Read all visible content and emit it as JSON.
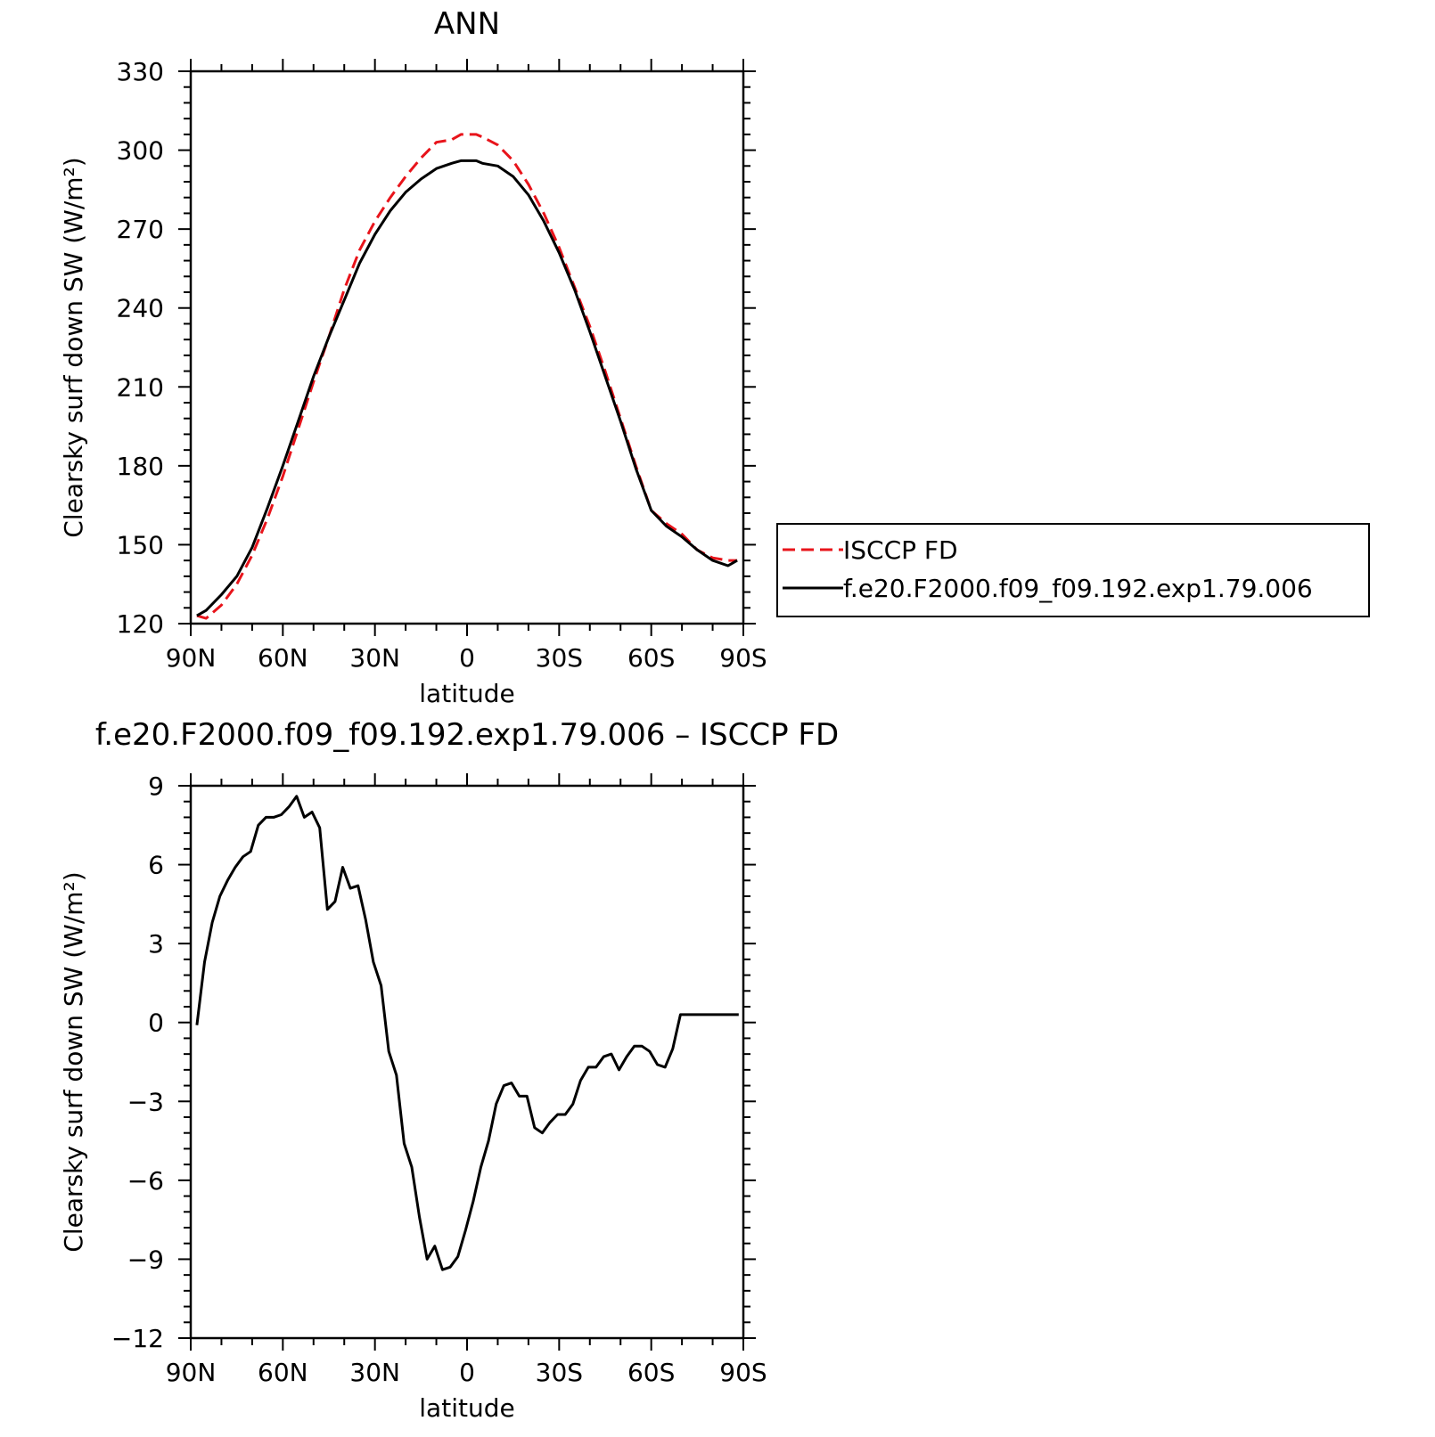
{
  "chart_data": [
    {
      "type": "line",
      "title": "ANN",
      "xlabel": "latitude",
      "ylabel": "Clearsky surf down SW (W/m²)",
      "xlim": [
        90,
        -90
      ],
      "ylim": [
        120,
        330
      ],
      "x_ticks": [
        {
          "value": 90,
          "label": "90N"
        },
        {
          "value": 60,
          "label": "60N"
        },
        {
          "value": 30,
          "label": "30N"
        },
        {
          "value": 0,
          "label": "0"
        },
        {
          "value": -30,
          "label": "30S"
        },
        {
          "value": -60,
          "label": "60S"
        },
        {
          "value": -90,
          "label": "90S"
        }
      ],
      "y_ticks": [
        {
          "value": 120,
          "label": "120"
        },
        {
          "value": 150,
          "label": "150"
        },
        {
          "value": 180,
          "label": "180"
        },
        {
          "value": 210,
          "label": "210"
        },
        {
          "value": 240,
          "label": "240"
        },
        {
          "value": 270,
          "label": "270"
        },
        {
          "value": 300,
          "label": "300"
        },
        {
          "value": 330,
          "label": "330"
        }
      ],
      "grid": false,
      "legend_position": "right",
      "series": [
        {
          "name": "ISCCP FD",
          "color": "#e8141b",
          "dash": "dashed",
          "x": [
            88,
            85,
            80,
            75,
            70,
            65,
            60,
            55,
            50,
            45,
            40,
            35,
            30,
            25,
            20,
            15,
            10,
            5,
            2,
            0,
            -3,
            -5,
            -10,
            -15,
            -20,
            -25,
            -30,
            -35,
            -40,
            -45,
            -50,
            -55,
            -60,
            -65,
            -70,
            -75,
            -80,
            -85,
            -88
          ],
          "y": [
            123,
            122,
            127,
            135,
            146,
            160,
            176,
            194,
            212,
            229,
            247,
            262,
            273,
            282,
            290,
            297,
            303,
            304,
            306,
            306,
            306,
            305,
            302,
            296,
            287,
            276,
            263,
            248,
            233,
            216,
            198,
            180,
            163,
            158,
            154,
            148,
            145,
            144,
            144
          ]
        },
        {
          "name": "f.e20.F2000.f09_f09.192.exp1.79.006",
          "color": "#000000",
          "dash": "solid",
          "x": [
            88,
            85,
            80,
            75,
            70,
            65,
            60,
            55,
            50,
            45,
            40,
            35,
            30,
            25,
            20,
            15,
            10,
            5,
            2,
            0,
            -3,
            -5,
            -10,
            -15,
            -20,
            -25,
            -30,
            -35,
            -40,
            -45,
            -50,
            -55,
            -60,
            -65,
            -70,
            -75,
            -80,
            -85,
            -88
          ],
          "y": [
            123,
            125,
            131,
            138,
            149,
            164,
            180,
            197,
            214,
            229,
            243,
            257,
            268,
            277,
            284,
            289,
            293,
            295,
            296,
            296,
            296,
            295,
            294,
            290,
            283,
            273,
            261,
            247,
            231,
            214,
            197,
            179,
            163,
            157,
            153,
            148,
            144,
            142,
            144
          ]
        }
      ]
    },
    {
      "type": "line",
      "title": "f.e20.F2000.f09_f09.192.exp1.79.006 – ISCCP FD",
      "xlabel": "latitude",
      "ylabel": "Clearsky surf down SW (W/m²)",
      "xlim": [
        90,
        -90
      ],
      "ylim": [
        -12,
        9
      ],
      "x_ticks": [
        {
          "value": 90,
          "label": "90N"
        },
        {
          "value": 60,
          "label": "60N"
        },
        {
          "value": 30,
          "label": "30N"
        },
        {
          "value": 0,
          "label": "0"
        },
        {
          "value": -30,
          "label": "30S"
        },
        {
          "value": -60,
          "label": "60S"
        },
        {
          "value": -90,
          "label": "90S"
        }
      ],
      "y_ticks": [
        {
          "value": -12,
          "label": "−12"
        },
        {
          "value": -9,
          "label": "−9"
        },
        {
          "value": -6,
          "label": "−6"
        },
        {
          "value": -3,
          "label": "−3"
        },
        {
          "value": 0,
          "label": "0"
        },
        {
          "value": 3,
          "label": "3"
        },
        {
          "value": 6,
          "label": "6"
        },
        {
          "value": 9,
          "label": "9"
        }
      ],
      "grid": false,
      "series": [
        {
          "color": "#000000",
          "dash": "solid",
          "x": [
            88,
            85.5,
            83,
            80.5,
            78,
            75.5,
            73,
            70.5,
            68,
            65.5,
            63,
            60.5,
            58,
            55.5,
            53,
            50.5,
            48,
            45.5,
            43,
            40.5,
            38,
            35.5,
            33,
            30.5,
            28,
            25.5,
            23,
            20.5,
            18,
            15.5,
            13,
            10.5,
            8,
            5.5,
            3,
            0.5,
            -2,
            -4.5,
            -7,
            -9.5,
            -12,
            -14.5,
            -17,
            -19.5,
            -22,
            -24.5,
            -27,
            -29.5,
            -32,
            -34.5,
            -37,
            -39.5,
            -42,
            -44.5,
            -47,
            -49.5,
            -52,
            -54.5,
            -57,
            -59.5,
            -62,
            -64.5,
            -67,
            -69.5,
            -72,
            -74.5,
            -77,
            -79.5,
            -82,
            -84.5,
            -87,
            -88.5
          ],
          "y": [
            -0.1,
            2.3,
            3.8,
            4.8,
            5.4,
            5.9,
            6.3,
            6.5,
            7.5,
            7.8,
            7.8,
            7.9,
            8.2,
            8.6,
            7.8,
            8.0,
            7.4,
            4.3,
            4.6,
            5.9,
            5.1,
            5.2,
            3.9,
            2.3,
            1.4,
            -1.1,
            -2.0,
            -4.6,
            -5.5,
            -7.4,
            -9.0,
            -8.5,
            -9.4,
            -9.3,
            -8.9,
            -7.9,
            -6.8,
            -5.5,
            -4.5,
            -3.1,
            -2.4,
            -2.3,
            -2.8,
            -2.8,
            -4.0,
            -4.2,
            -3.8,
            -3.5,
            -3.5,
            -3.1,
            -2.2,
            -1.7,
            -1.7,
            -1.3,
            -1.2,
            -1.8,
            -1.3,
            -0.9,
            -0.9,
            -1.1,
            -1.6,
            -1.7,
            -1.0,
            0.3,
            0.3,
            0.3,
            0.3,
            0.3,
            0.3,
            0.3,
            0.3,
            0.3
          ]
        }
      ]
    }
  ]
}
